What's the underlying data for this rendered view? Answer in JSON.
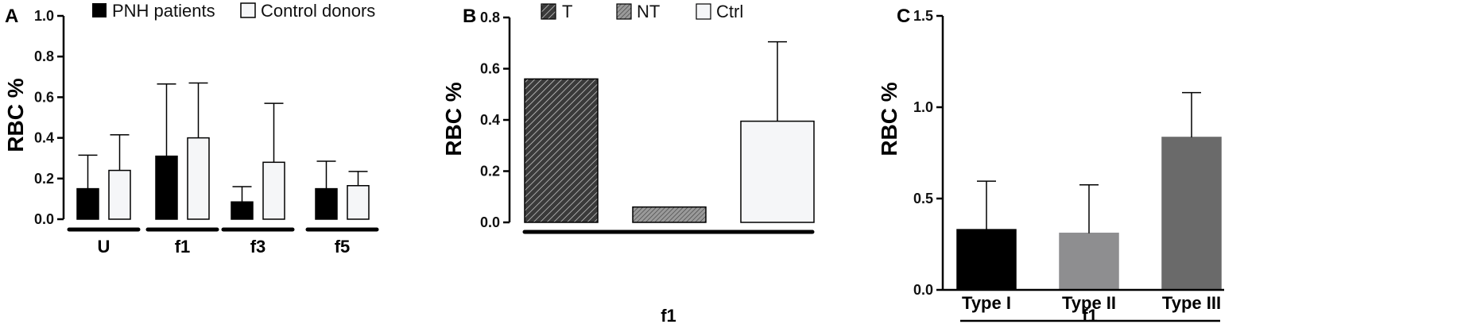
{
  "chart_data": [
    {
      "panel": "A",
      "type": "bar",
      "ylabel": "RBC %",
      "ylim": [
        0,
        1.0
      ],
      "yticks": [
        "0.0",
        "0.2",
        "0.4",
        "0.6",
        "0.8",
        "1.0"
      ],
      "categories": [
        "U",
        "f1",
        "f3",
        "f5"
      ],
      "series": [
        {
          "name": "PNH patients",
          "values": [
            0.15,
            0.31,
            0.085,
            0.15
          ],
          "errors": [
            0.165,
            0.355,
            0.075,
            0.135
          ],
          "color": "#000000"
        },
        {
          "name": "Control donors",
          "values": [
            0.24,
            0.4,
            0.28,
            0.165
          ],
          "errors": [
            0.175,
            0.27,
            0.29,
            0.07
          ],
          "color": "#f5f6f8"
        }
      ],
      "legend": "top"
    },
    {
      "panel": "B",
      "type": "bar",
      "ylabel": "RBC %",
      "ylim": [
        0,
        0.8
      ],
      "yticks": [
        "0.0",
        "0.2",
        "0.4",
        "0.6",
        "0.8"
      ],
      "categories": [
        "T",
        "NT",
        "Ctrl"
      ],
      "group_label": "f1",
      "values": [
        0.56,
        0.06,
        0.395
      ],
      "errors": [
        0,
        0,
        0.31
      ],
      "fills": [
        "hatch-dark",
        "hatch-light",
        "#f5f6f8"
      ],
      "legend_entries": [
        "T",
        "NT",
        "Ctrl"
      ],
      "legend": "top"
    },
    {
      "panel": "C",
      "type": "bar",
      "ylabel": "RBC %",
      "ylim": [
        0,
        1.5
      ],
      "yticks": [
        "0.0",
        "0.5",
        "1.0",
        "1.5"
      ],
      "categories": [
        "Type I",
        "Type II",
        "Type III"
      ],
      "group_label": "f1",
      "values": [
        0.33,
        0.31,
        0.835
      ],
      "errors": [
        0.265,
        0.265,
        0.245
      ],
      "colors": [
        "#000000",
        "#8e8e90",
        "#6a6a6a"
      ]
    }
  ]
}
